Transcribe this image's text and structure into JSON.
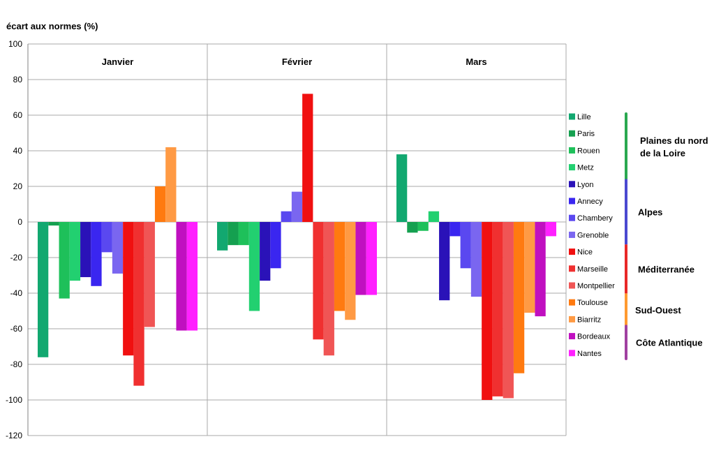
{
  "chart_data": {
    "type": "bar",
    "ylabel": "écart aux normes (%)",
    "ylim": [
      -120,
      100
    ],
    "yticks": [
      100,
      80,
      60,
      40,
      20,
      0,
      -20,
      -40,
      -60,
      -80,
      -100,
      -120
    ],
    "grid": true,
    "categories": [
      "Janvier",
      "Février",
      "Mars"
    ],
    "series": [
      {
        "name": "Lille",
        "color": "#12a870",
        "values": [
          -76,
          -16,
          38
        ]
      },
      {
        "name": "Paris",
        "color": "#15a050",
        "values": [
          -2,
          -13,
          -6
        ]
      },
      {
        "name": "Rouen",
        "color": "#1ec05a",
        "values": [
          -43,
          -13,
          -5
        ]
      },
      {
        "name": "Metz",
        "color": "#22d070",
        "values": [
          -33,
          -50,
          6
        ]
      },
      {
        "name": "Lyon",
        "color": "#2a12b8",
        "values": [
          -31,
          -33,
          -44
        ]
      },
      {
        "name": "Annecy",
        "color": "#3a26f0",
        "values": [
          -36,
          -26,
          -8
        ]
      },
      {
        "name": "Chambery",
        "color": "#5a48f0",
        "values": [
          -17,
          6,
          -26
        ]
      },
      {
        "name": "Grenoble",
        "color": "#7a66f0",
        "values": [
          -29,
          17,
          -42
        ]
      },
      {
        "name": "Nice",
        "color": "#f01010",
        "values": [
          -75,
          72,
          -100
        ]
      },
      {
        "name": "Marseille",
        "color": "#f03030",
        "values": [
          -92,
          -66,
          -98
        ]
      },
      {
        "name": "Montpellier",
        "color": "#f05555",
        "values": [
          -59,
          -75,
          -99
        ]
      },
      {
        "name": "Toulouse",
        "color": "#ff7a10",
        "values": [
          20,
          -50,
          -85
        ]
      },
      {
        "name": "Biarritz",
        "color": "#ff9a44",
        "values": [
          42,
          -55,
          -51
        ]
      },
      {
        "name": "Bordeaux",
        "color": "#c010c0",
        "values": [
          -61,
          -41,
          -53
        ]
      },
      {
        "name": "Nantes",
        "color": "#ff20ff",
        "values": [
          -61,
          -41,
          -8
        ]
      }
    ],
    "legend_position": "right",
    "regions": [
      {
        "label_lines": [
          "Plaines du nord",
          "de la Loire"
        ],
        "color": "#2aa850",
        "start": 0,
        "count": 4
      },
      {
        "label_lines": [
          "Alpes"
        ],
        "color": "#4a48d0",
        "start": 4,
        "count": 4
      },
      {
        "label_lines": [
          "Méditerranée"
        ],
        "color": "#e82828",
        "start": 8,
        "count": 3
      },
      {
        "label_lines": [
          "Sud-Ouest"
        ],
        "color": "#ff9a30",
        "start": 11,
        "count": 2
      },
      {
        "label_lines": [
          "Côte Atlantique"
        ],
        "color": "#a040a0",
        "start": 13,
        "count": 2
      }
    ]
  }
}
